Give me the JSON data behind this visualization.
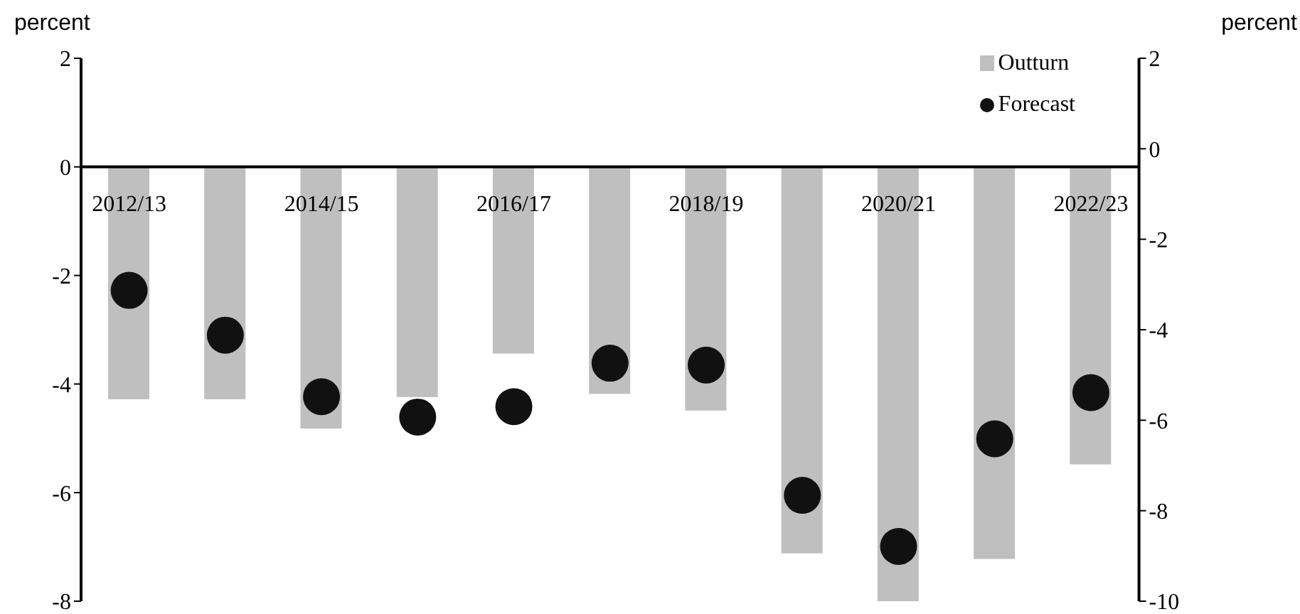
{
  "chart_data": {
    "type": "bar",
    "ylabel": "percent",
    "y2label": "percent",
    "categories": [
      "2012/13",
      null,
      "2014/15",
      null,
      "2016/17",
      null,
      "2018/19",
      null,
      "2020/21",
      null,
      "2022/23"
    ],
    "series": [
      {
        "name": "Outturn",
        "color": "#bfbfbf",
        "values": [
          -4.28,
          -4.28,
          -4.82,
          -4.24,
          -3.44,
          -4.18,
          -4.49,
          -7.12,
          -8.0,
          -7.22,
          -5.48
        ]
      },
      {
        "name": "Forecast",
        "type": "scatter",
        "axis": "y2",
        "color": "#111111",
        "values": [
          -3.13,
          -4.12,
          -5.48,
          -5.93,
          -5.7,
          -4.74,
          -4.78,
          -7.66,
          -8.79,
          -6.41,
          -5.39
        ]
      }
    ],
    "ylim": [
      -8,
      2
    ],
    "yticks": [
      -8,
      -6,
      -4,
      -2,
      0,
      2
    ],
    "y2lim": [
      -10,
      2
    ],
    "y2ticks": [
      -10,
      -8,
      -6,
      -4,
      -2,
      0,
      2
    ],
    "legend": "top right",
    "marker": "circle"
  }
}
